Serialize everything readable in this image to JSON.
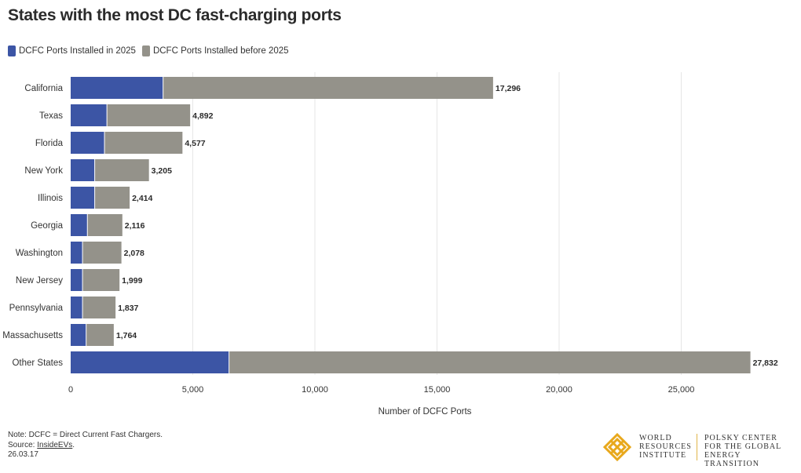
{
  "header": {
    "title": "States with the most DC fast-charging ports"
  },
  "legend": [
    {
      "label": "DCFC Ports Installed in 2025",
      "color": "#3c55a5"
    },
    {
      "label": "DCFC Ports Installed before 2025",
      "color": "#94928a"
    }
  ],
  "chart_data": {
    "type": "bar",
    "orientation": "horizontal",
    "stacked": true,
    "categories": [
      "California",
      "Texas",
      "Florida",
      "New York",
      "Illinois",
      "Georgia",
      "Washington",
      "New Jersey",
      "Pennsylvania",
      "Massachusetts",
      "Other States"
    ],
    "series": [
      {
        "name": "DCFC Ports Installed in 2025",
        "color": "#3c55a5",
        "values": [
          3800,
          1500,
          1400,
          1000,
          1000,
          700,
          500,
          500,
          500,
          650,
          6500
        ]
      },
      {
        "name": "DCFC Ports Installed before 2025",
        "color": "#94928a",
        "values": [
          13496,
          3392,
          3177,
          2205,
          1414,
          1416,
          1578,
          1499,
          1337,
          1114,
          21332
        ]
      }
    ],
    "totals": [
      17296,
      4892,
      4577,
      3205,
      2414,
      2116,
      2078,
      1999,
      1837,
      1764,
      27832
    ],
    "total_labels": [
      "17,296",
      "4,892",
      "4,577",
      "3,205",
      "2,414",
      "2,116",
      "2,078",
      "1,999",
      "1,837",
      "1,764",
      "27,832"
    ],
    "xlabel": "Number of DCFC Ports",
    "xlim": [
      0,
      28500
    ],
    "xticks": [
      0,
      5000,
      10000,
      15000,
      20000,
      25000
    ],
    "xtick_labels": [
      "0",
      "5,000",
      "10,000",
      "15,000",
      "20,000",
      "25,000"
    ],
    "grid": "vertical",
    "legend_position": "top-left"
  },
  "notes": {
    "note": "Note: DCFC = Direct Current Fast Chargers.",
    "source_prefix": "Source: ",
    "source_link": "InsideEVs",
    "source_suffix": ".",
    "date": "26.03.17"
  },
  "logo": {
    "wri": [
      "World",
      "Resources",
      "Institute"
    ],
    "polsky": [
      "Polsky Center",
      "for the Global",
      "Energy Transition"
    ],
    "accent_color": "#e8a81c"
  }
}
